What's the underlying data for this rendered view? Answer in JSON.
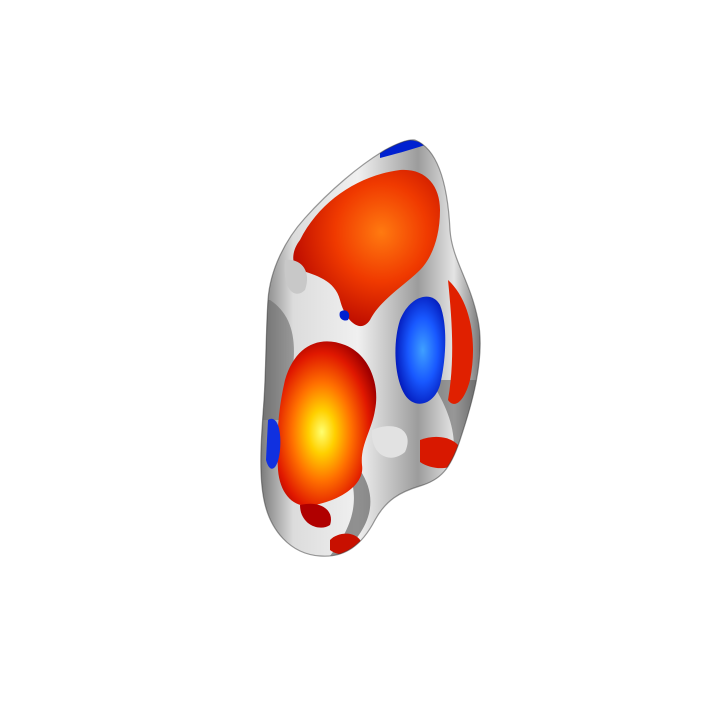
{
  "scene": {
    "background_color": "#ffffff",
    "subject": "inflated-cortical-surface-activation-map",
    "view": "frontal",
    "colormap": {
      "positive": [
        "#8b0000",
        "#e01a00",
        "#ff6a00",
        "#ffd400",
        "#ffff66"
      ],
      "negative": [
        "#00008b",
        "#0030ff",
        "#3399ff"
      ],
      "underlay": [
        "#4a4a4a",
        "#9a9a9a",
        "#e8e8e8"
      ]
    }
  }
}
